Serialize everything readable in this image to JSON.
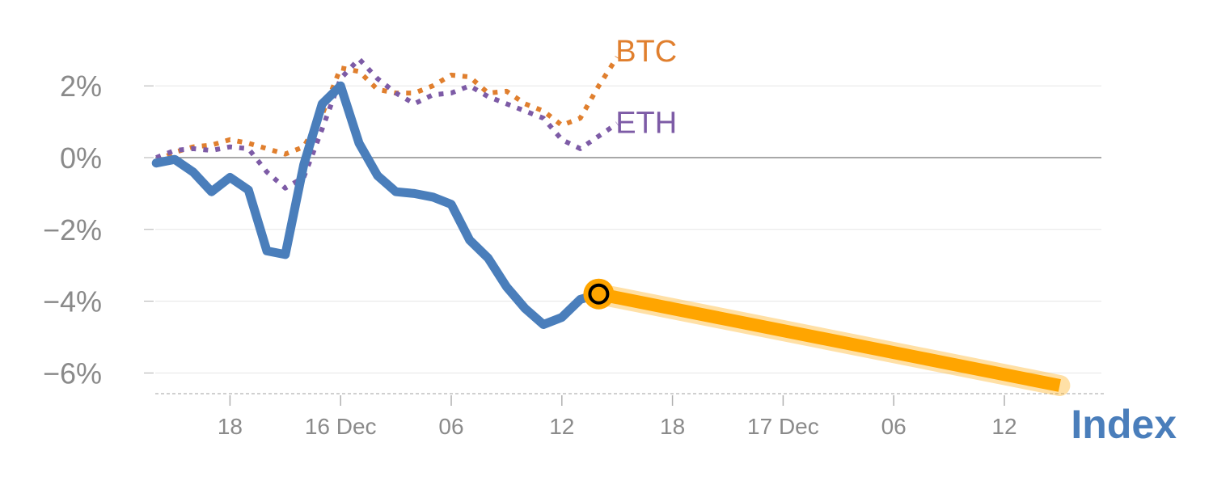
{
  "chart_data": {
    "type": "line",
    "ylim": [
      -6.6,
      3.2
    ],
    "yticks": [
      {
        "value": 2,
        "label": "2%"
      },
      {
        "value": 0,
        "label": "0%"
      },
      {
        "value": -2,
        "label": "−2%"
      },
      {
        "value": -4,
        "label": "−4%"
      },
      {
        "value": -6,
        "label": "−6%"
      }
    ],
    "xlim": [
      0,
      50
    ],
    "xticks": [
      {
        "x": 3,
        "label": "18"
      },
      {
        "x": 9,
        "label": "16 Dec"
      },
      {
        "x": 15,
        "label": "06"
      },
      {
        "x": 21,
        "label": "12"
      },
      {
        "x": 27,
        "label": "18"
      },
      {
        "x": 33,
        "label": "17 Dec"
      },
      {
        "x": 39,
        "label": "06"
      },
      {
        "x": 45,
        "label": "12"
      }
    ],
    "grid": true,
    "series": [
      {
        "name": "BTC",
        "color": "#e07f2e",
        "style": "dotted",
        "points": [
          [
            -1,
            -0.1
          ],
          [
            0,
            0.15
          ],
          [
            1,
            0.3
          ],
          [
            2,
            0.35
          ],
          [
            3,
            0.5
          ],
          [
            4,
            0.4
          ],
          [
            5,
            0.25
          ],
          [
            6,
            0.1
          ],
          [
            7,
            0.3
          ],
          [
            8,
            1.2
          ],
          [
            9,
            2.5
          ],
          [
            10,
            2.4
          ],
          [
            11,
            1.9
          ],
          [
            12,
            1.8
          ],
          [
            13,
            1.8
          ],
          [
            14,
            2.0
          ],
          [
            15,
            2.3
          ],
          [
            16,
            2.25
          ],
          [
            17,
            1.8
          ],
          [
            18,
            1.85
          ],
          [
            19,
            1.5
          ],
          [
            20,
            1.3
          ],
          [
            21,
            0.9
          ],
          [
            22,
            1.1
          ],
          [
            23,
            2.0
          ],
          [
            24,
            2.8
          ]
        ]
      },
      {
        "name": "ETH",
        "color": "#7d5ba6",
        "style": "dotted",
        "points": [
          [
            -1,
            0.0
          ],
          [
            0,
            0.2
          ],
          [
            1,
            0.25
          ],
          [
            2,
            0.2
          ],
          [
            3,
            0.3
          ],
          [
            4,
            0.25
          ],
          [
            5,
            -0.4
          ],
          [
            6,
            -0.85
          ],
          [
            7,
            -0.55
          ],
          [
            8,
            0.8
          ],
          [
            9,
            2.2
          ],
          [
            10,
            2.75
          ],
          [
            11,
            2.2
          ],
          [
            12,
            1.8
          ],
          [
            13,
            1.5
          ],
          [
            14,
            1.75
          ],
          [
            15,
            1.8
          ],
          [
            16,
            2.0
          ],
          [
            17,
            1.7
          ],
          [
            18,
            1.5
          ],
          [
            19,
            1.3
          ],
          [
            20,
            1.1
          ],
          [
            21,
            0.5
          ],
          [
            22,
            0.25
          ],
          [
            23,
            0.6
          ],
          [
            24,
            0.95
          ]
        ]
      },
      {
        "name": "Index",
        "color": "#4a7ebb",
        "style": "solid",
        "points": [
          [
            -1,
            -0.15
          ],
          [
            0,
            -0.05
          ],
          [
            1,
            -0.4
          ],
          [
            2,
            -0.95
          ],
          [
            3,
            -0.55
          ],
          [
            4,
            -0.9
          ],
          [
            5,
            -2.6
          ],
          [
            6,
            -2.7
          ],
          [
            7,
            -0.2
          ],
          [
            8,
            1.5
          ],
          [
            9,
            2.0
          ],
          [
            10,
            0.4
          ],
          [
            11,
            -0.5
          ],
          [
            12,
            -0.95
          ],
          [
            13,
            -1.0
          ],
          [
            14,
            -1.1
          ],
          [
            15,
            -1.3
          ],
          [
            16,
            -2.3
          ],
          [
            17,
            -2.8
          ],
          [
            18,
            -3.6
          ],
          [
            19,
            -4.2
          ],
          [
            20,
            -4.65
          ],
          [
            21,
            -4.45
          ],
          [
            22,
            -3.95
          ],
          [
            23,
            -3.8
          ]
        ]
      }
    ],
    "projection": {
      "color": "#ffa500",
      "from": [
        23,
        -3.8
      ],
      "to": [
        48,
        -6.35
      ]
    },
    "marker": {
      "x": 23,
      "y": -3.8,
      "color": "#ffa500"
    },
    "labels": [
      {
        "series": "BTC",
        "text": "BTC",
        "x": 24,
        "y": 3.0,
        "color": "#e07f2e"
      },
      {
        "series": "ETH",
        "text": "ETH",
        "x": 24,
        "y": 1.0,
        "color": "#7d5ba6"
      },
      {
        "series": "Index",
        "text": "Index",
        "color": "#4a7ebb"
      }
    ]
  }
}
